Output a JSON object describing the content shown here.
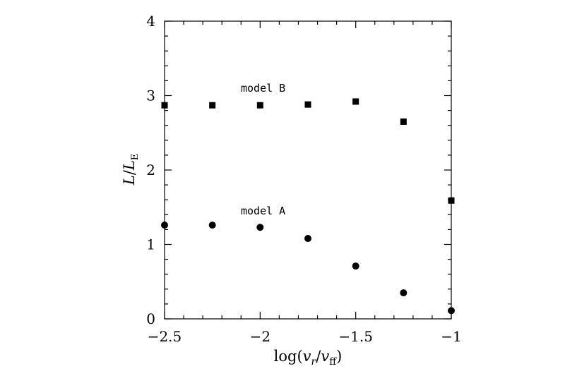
{
  "chart_data": {
    "type": "scatter",
    "title": "",
    "xlabel": "log(v_r/v_ff)",
    "ylabel": "L/L_E",
    "xlim": [
      -2.5,
      -1.0
    ],
    "ylim": [
      0,
      4
    ],
    "x_ticks": [
      -2.5,
      -2,
      -1.5,
      -1
    ],
    "x_tick_labels": [
      "−2.5",
      "−2",
      "−1.5",
      "−1"
    ],
    "y_ticks": [
      0,
      1,
      2,
      3,
      4
    ],
    "y_tick_labels": [
      "0",
      "1",
      "2",
      "3",
      "4"
    ],
    "grid": false,
    "series": [
      {
        "name": "model B",
        "marker": "square",
        "color": "#000000",
        "x": [
          -2.5,
          -2.25,
          -2.0,
          -1.75,
          -1.5,
          -1.25,
          -1.0
        ],
        "y": [
          2.87,
          2.87,
          2.87,
          2.88,
          2.92,
          2.65,
          1.59
        ]
      },
      {
        "name": "model A",
        "marker": "circle",
        "color": "#000000",
        "x": [
          -2.5,
          -2.25,
          -2.0,
          -1.75,
          -1.5,
          -1.25,
          -1.0
        ],
        "y": [
          1.26,
          1.26,
          1.23,
          1.08,
          0.71,
          0.35,
          0.11
        ]
      }
    ],
    "annotations": [
      {
        "text": "model B",
        "series": 0
      },
      {
        "text": "model A",
        "series": 1
      }
    ]
  }
}
